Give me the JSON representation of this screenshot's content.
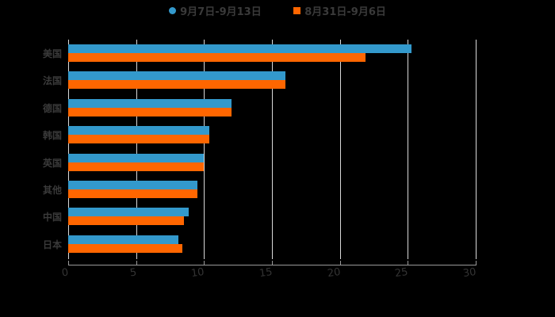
{
  "chart_data": {
    "type": "bar",
    "orientation": "horizontal",
    "title": "",
    "xlabel": "",
    "ylabel": "",
    "xlim": [
      0,
      30
    ],
    "xticks": [
      0,
      5,
      10,
      15,
      20,
      25,
      30
    ],
    "grid": true,
    "legend_position": "top",
    "categories": [
      "美国",
      "法国",
      "德国",
      "韩国",
      "英国",
      "其他",
      "中国",
      "日本"
    ],
    "series": [
      {
        "name": "9月7日-9月13日",
        "color": "#3399cc",
        "marker": "circle",
        "values": [
          25.3,
          16.0,
          12.0,
          10.4,
          10.0,
          9.5,
          8.9,
          8.1
        ]
      },
      {
        "name": "8月31日-9月6日",
        "color": "#ff6600",
        "marker": "square",
        "values": [
          21.9,
          16.0,
          12.0,
          10.4,
          10.0,
          9.5,
          8.5,
          8.4
        ]
      }
    ]
  },
  "legend": {
    "series0": "9月7日-9月13日",
    "series1": "8月31日-9月6日"
  }
}
